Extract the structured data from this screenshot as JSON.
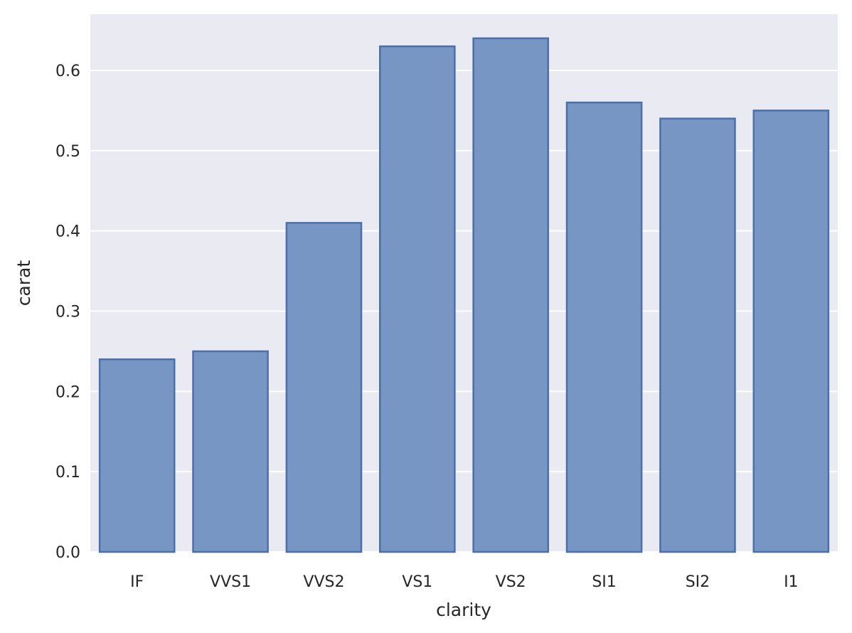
{
  "chart_data": {
    "type": "bar",
    "categories": [
      "IF",
      "VVS1",
      "VVS2",
      "VS1",
      "VS2",
      "SI1",
      "SI2",
      "I1"
    ],
    "values": [
      0.24,
      0.25,
      0.41,
      0.63,
      0.64,
      0.56,
      0.54,
      0.55
    ],
    "xlabel": "clarity",
    "ylabel": "carat",
    "ylim": [
      0,
      0.67
    ],
    "yticks": [
      0.0,
      0.1,
      0.2,
      0.3,
      0.4,
      0.5,
      0.6
    ],
    "ytick_labels": [
      "0.0",
      "0.1",
      "0.2",
      "0.3",
      "0.4",
      "0.5",
      "0.6"
    ],
    "grid": true,
    "colors": {
      "background": "#eaeaf2",
      "grid": "#ffffff",
      "bar_fill": "#7896c3",
      "bar_edge": "#4c6faa"
    }
  }
}
